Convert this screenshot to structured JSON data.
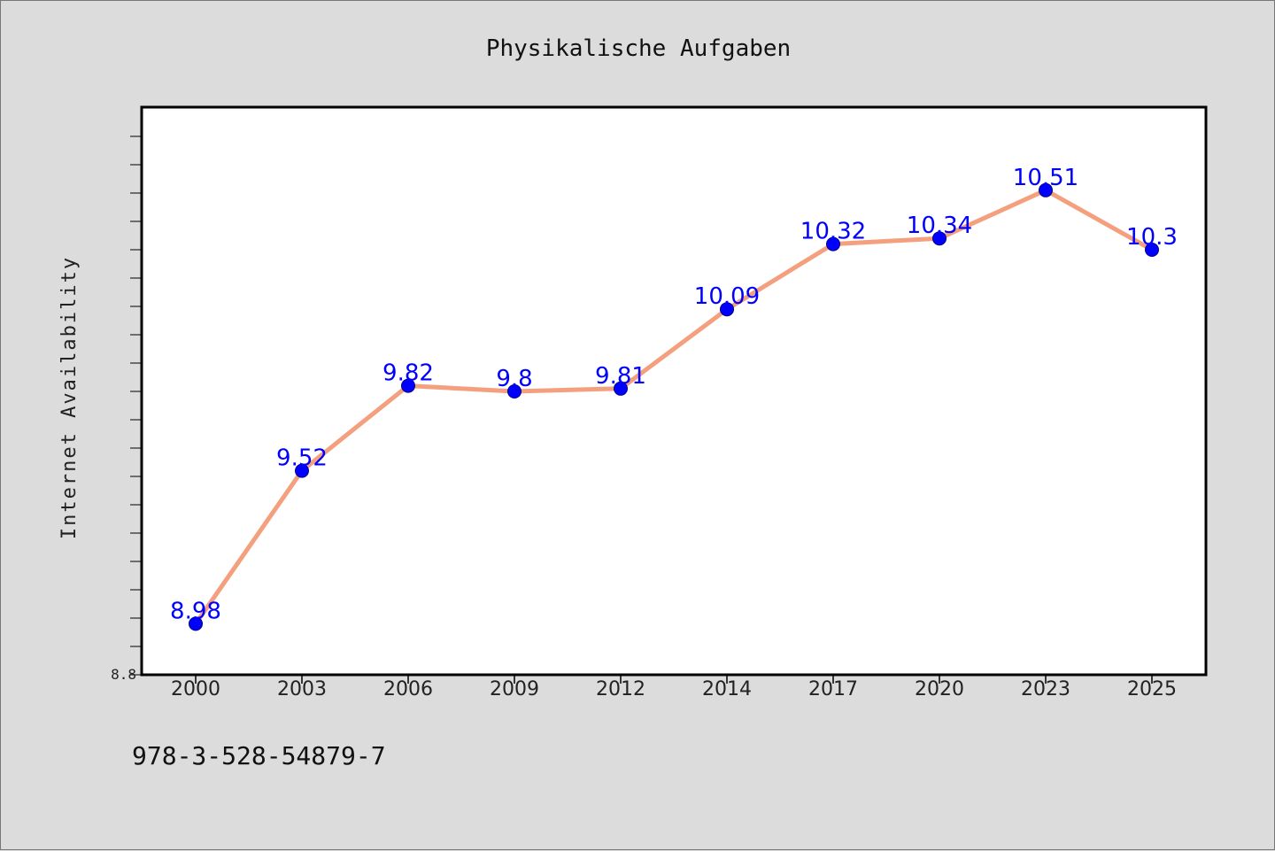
{
  "chart_data": {
    "type": "line",
    "title": "Physikalische Aufgaben",
    "xlabel": "",
    "ylabel": "Internet Availability",
    "categories": [
      "2000",
      "2003",
      "2006",
      "2009",
      "2012",
      "2014",
      "2017",
      "2020",
      "2023",
      "2025"
    ],
    "series": [
      {
        "values": [
          8.98,
          9.52,
          9.82,
          9.8,
          9.81,
          10.09,
          10.32,
          10.34,
          10.51,
          10.3
        ]
      }
    ],
    "data_labels": [
      "8.98",
      "9.52",
      "9.82",
      "9.8",
      "9.81",
      "10.09",
      "10.32",
      "10.34",
      "10.51",
      "10.3"
    ],
    "yticks_labeled": [
      "8.8"
    ],
    "ylim": [
      8.8,
      10.8
    ],
    "grid": false,
    "line_color": "#f4a07e",
    "marker_color": "#0000ff",
    "label_color": "#0000ff",
    "plot_background": "#ffffff",
    "figure_background": "#dcdcdc"
  },
  "footer": {
    "isbn": "978-3-528-54879-7"
  }
}
